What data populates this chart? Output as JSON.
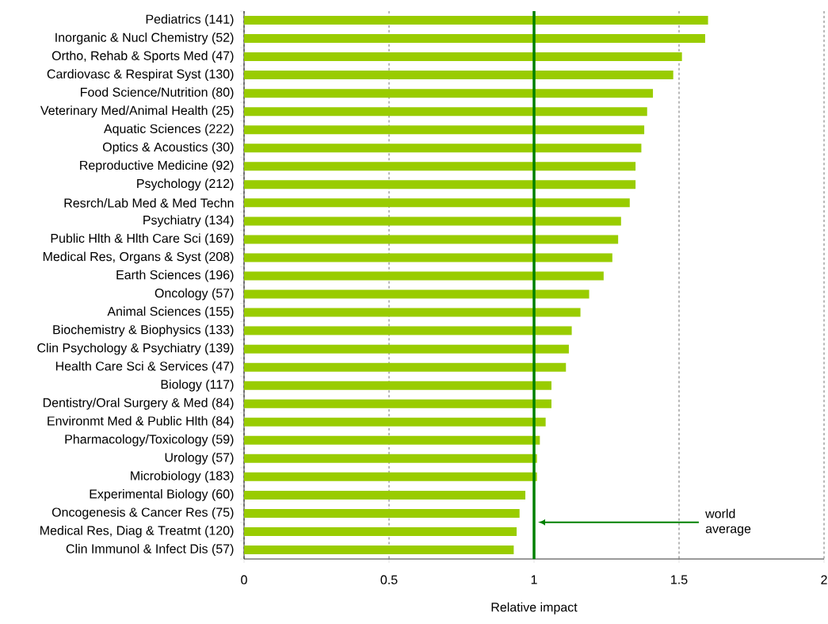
{
  "chart_data": {
    "type": "bar",
    "orientation": "horizontal",
    "xlabel": "Relative impact",
    "categories": [
      "Pediatrics (141)",
      "Inorganic & Nucl Chemistry (52)",
      "Ortho, Rehab & Sports Med (47)",
      "Cardiovasc & Respirat Syst (130)",
      "Food Science/Nutrition (80)",
      "Veterinary Med/Animal Health (25)",
      "Aquatic Sciences (222)",
      "Optics & Acoustics (30)",
      "Reproductive Medicine (92)",
      "Psychology (212)",
      "Resrch/Lab Med & Med Techn",
      "Psychiatry (134)",
      "Public Hlth & Hlth Care Sci (169)",
      "Medical Res, Organs & Syst (208)",
      "Earth Sciences (196)",
      "Oncology (57)",
      "Animal Sciences (155)",
      "Biochemistry & Biophysics (133)",
      "Clin Psychology & Psychiatry (139)",
      "Health Care Sci & Services (47)",
      "Biology (117)",
      "Dentistry/Oral Surgery & Med (84)",
      "Environmt Med & Public Hlth (84)",
      "Pharmacology/Toxicology (59)",
      "Urology (57)",
      "Microbiology (183)",
      "Experimental Biology (60)",
      "Oncogenesis & Cancer Res (75)",
      "Medical Res, Diag & Treatmt (120)",
      "Clin Immunol & Infect Dis (57)"
    ],
    "values": [
      1.6,
      1.59,
      1.51,
      1.48,
      1.41,
      1.39,
      1.38,
      1.37,
      1.35,
      1.35,
      1.33,
      1.3,
      1.29,
      1.27,
      1.24,
      1.19,
      1.16,
      1.13,
      1.12,
      1.11,
      1.06,
      1.06,
      1.04,
      1.02,
      1.01,
      1.01,
      0.97,
      0.95,
      0.94,
      0.93
    ],
    "color": "#99cc00",
    "xlim": [
      0,
      2
    ],
    "xticks": [
      0,
      0.5,
      1,
      1.5,
      2
    ],
    "grid": "x",
    "ref_lines": [
      {
        "axis": "x",
        "value": 1,
        "color": "#008000"
      }
    ],
    "annotations": [
      "world average"
    ]
  }
}
